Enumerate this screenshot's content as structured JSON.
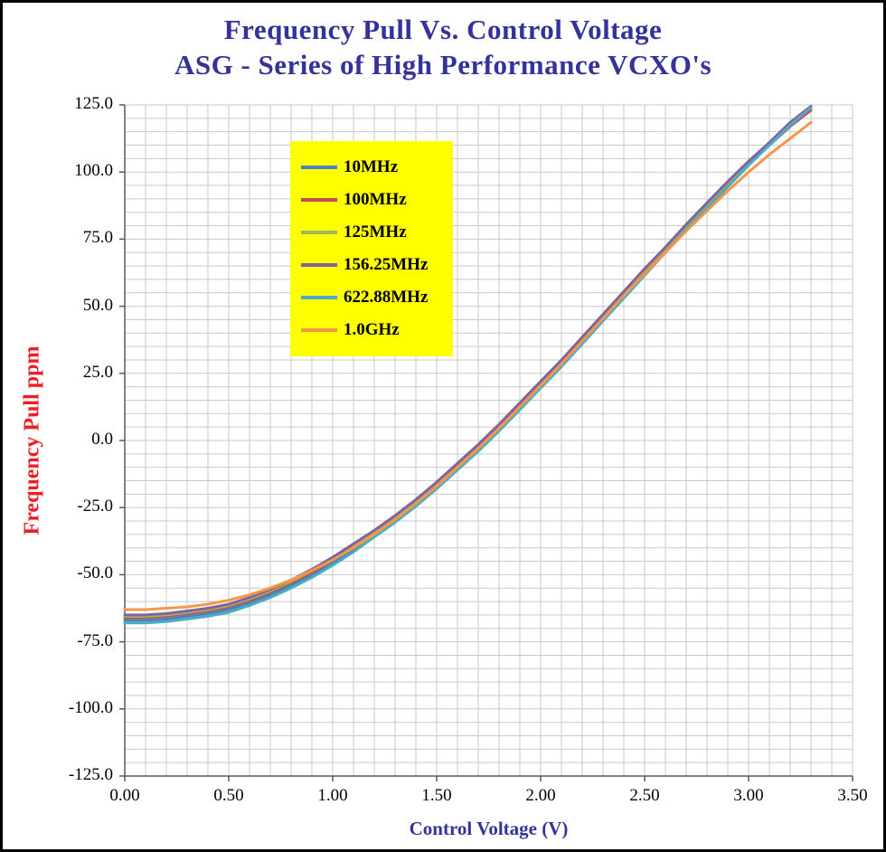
{
  "chart_data": {
    "type": "line",
    "title": "Frequency Pull Vs. Control Voltage",
    "subtitle": "ASG - Series of High Performance VCXO's",
    "xlabel": "Control Voltage (V)",
    "ylabel": "Frequency Pull ppm",
    "xlim": [
      0,
      3.5
    ],
    "ylim": [
      -125,
      125
    ],
    "x_tick_step": 0.5,
    "x_minor_step": 0.1,
    "y_tick_step": 25,
    "y_minor_step": 5,
    "grid": true,
    "legend_position": "upper-left-inside",
    "x_tick_labels": [
      "0.00",
      "0.50",
      "1.00",
      "1.50",
      "2.00",
      "2.50",
      "3.00",
      "3.50"
    ],
    "y_tick_labels": [
      "125.0",
      "100.0",
      "75.0",
      "50.0",
      "25.0",
      "0.0",
      "-25.0",
      "-50.0",
      "-75.0",
      "-100.0",
      "-125.0"
    ],
    "colors": {
      "title": "#333399",
      "xlabel": "#333399",
      "ylabel": "#ee1c25",
      "grid": "#c9c9c9",
      "axis": "#5a5a5a",
      "tick_text": "#000000",
      "legend_bg": "#ffff00",
      "page_border": "#000000"
    },
    "x": [
      0,
      0.1,
      0.2,
      0.3,
      0.4,
      0.5,
      0.6,
      0.7,
      0.8,
      0.9,
      1,
      1.1,
      1.2,
      1.3,
      1.4,
      1.5,
      1.6,
      1.7,
      1.8,
      1.9,
      2,
      2.1,
      2.2,
      2.3,
      2.4,
      2.5,
      2.6,
      2.7,
      2.8,
      2.9,
      3,
      3.1,
      3.2,
      3.3
    ],
    "series": [
      {
        "name": "10MHz",
        "color": "#4f81bd",
        "values": [
          -67,
          -67,
          -66.5,
          -65.5,
          -64.5,
          -63,
          -60.5,
          -57.5,
          -54,
          -50,
          -45.5,
          -40.5,
          -35,
          -29.5,
          -23.5,
          -17,
          -10,
          -3,
          4.5,
          12.5,
          20.5,
          28.5,
          37,
          45.5,
          54,
          62.5,
          70.5,
          79,
          87,
          95,
          103,
          110.5,
          118,
          124.5
        ]
      },
      {
        "name": "100MHz",
        "color": "#c0504d",
        "values": [
          -66,
          -66,
          -65.5,
          -64.5,
          -63.5,
          -62,
          -59.5,
          -56.5,
          -53,
          -49,
          -44.5,
          -39.5,
          -34.5,
          -29,
          -23,
          -16.5,
          -9.5,
          -2.5,
          5,
          13,
          21,
          29,
          37.5,
          46,
          54.5,
          63,
          71,
          79.5,
          87.5,
          95.5,
          103,
          110,
          117,
          123
        ]
      },
      {
        "name": "125MHz",
        "color": "#9bbb59",
        "values": [
          -65.5,
          -65.5,
          -65,
          -64,
          -63,
          -61.5,
          -59,
          -56,
          -52.5,
          -48.5,
          -44,
          -39,
          -34,
          -28.5,
          -22.5,
          -16,
          -9,
          -2,
          5.5,
          13.5,
          21.5,
          29.5,
          38,
          46.5,
          55,
          63.5,
          71.5,
          80,
          88,
          96,
          103.5,
          111,
          118,
          124
        ]
      },
      {
        "name": "156.25MHz",
        "color": "#8064a2",
        "values": [
          -65,
          -65,
          -64.5,
          -63.5,
          -62.5,
          -61,
          -58.5,
          -55.5,
          -52,
          -48,
          -43.5,
          -38.5,
          -33.5,
          -28,
          -22,
          -15.5,
          -8.5,
          -1.5,
          6,
          14,
          22,
          30,
          38.5,
          47,
          55.5,
          64,
          72,
          80.5,
          88.5,
          96.5,
          104,
          111,
          118.5,
          124.5
        ]
      },
      {
        "name": "622.88MHz",
        "color": "#4bacc6",
        "values": [
          -68,
          -68,
          -67.5,
          -66.5,
          -65.5,
          -64,
          -61.5,
          -58.5,
          -55,
          -51,
          -46.5,
          -41.5,
          -36,
          -30.5,
          -24.5,
          -18,
          -11,
          -4,
          3.5,
          11.5,
          19.5,
          27.5,
          36,
          44.5,
          53,
          61.5,
          70,
          78.5,
          86.5,
          94.5,
          102.5,
          110,
          117.5,
          124
        ]
      },
      {
        "name": "1.0GHz",
        "color": "#f79646",
        "values": [
          -63,
          -63,
          -62.5,
          -62,
          -61,
          -59.5,
          -57.5,
          -55,
          -52,
          -48.5,
          -44.5,
          -40,
          -35,
          -29.5,
          -23.5,
          -17,
          -10,
          -3,
          4.5,
          12.5,
          20.5,
          28.5,
          37,
          45.5,
          54,
          62,
          70,
          78,
          85.5,
          93,
          100,
          106.5,
          112.5,
          118.5
        ]
      }
    ]
  }
}
